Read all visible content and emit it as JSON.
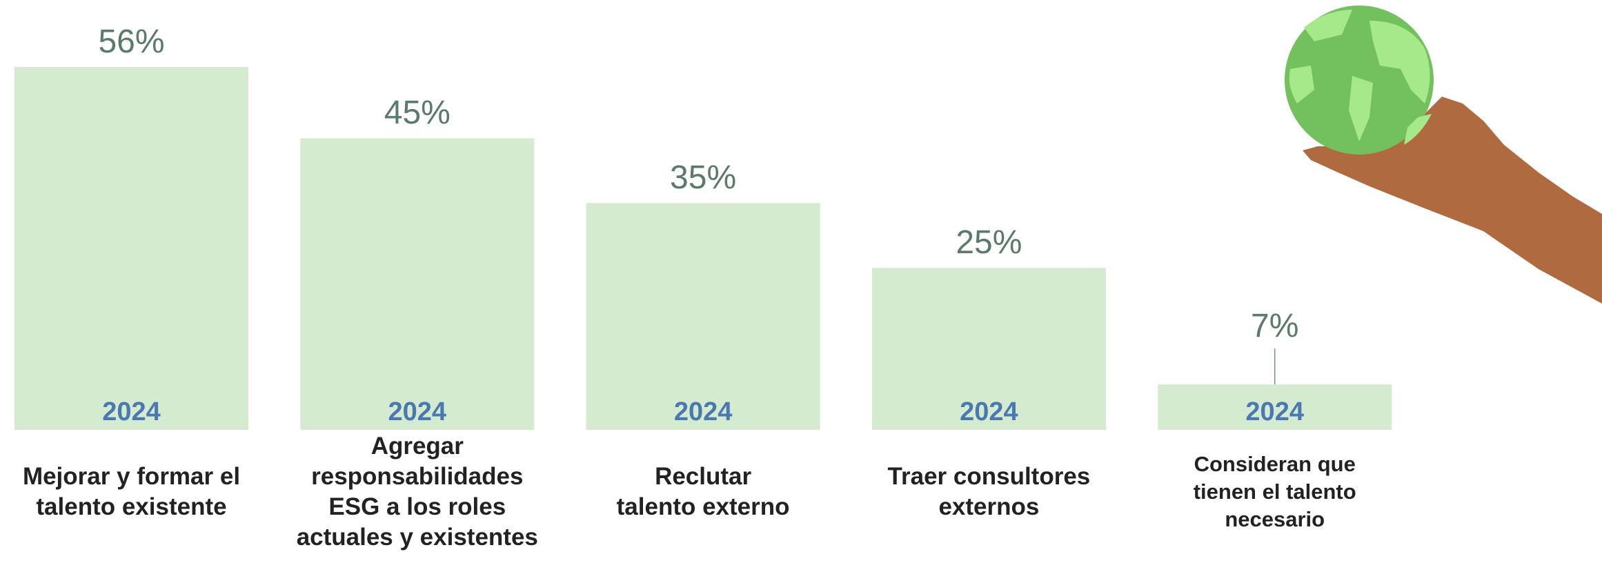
{
  "chart_data": {
    "type": "bar",
    "categories": [
      "Mejorar y formar el\ntalento existente",
      "Agregar\nresponsabilidades\nESG a los roles\nactuales y existentes",
      "Reclutar\ntalento externo",
      "Traer consultores\nexternos",
      "Consideran que\ntienen el talento\nnecesario"
    ],
    "series": [
      {
        "name": "2024",
        "color": "#d4ebcf",
        "values": [
          56,
          45,
          35,
          25,
          7
        ],
        "value_labels": [
          "56%",
          "45%",
          "35%",
          "25%",
          "7%"
        ]
      }
    ]
  }
}
